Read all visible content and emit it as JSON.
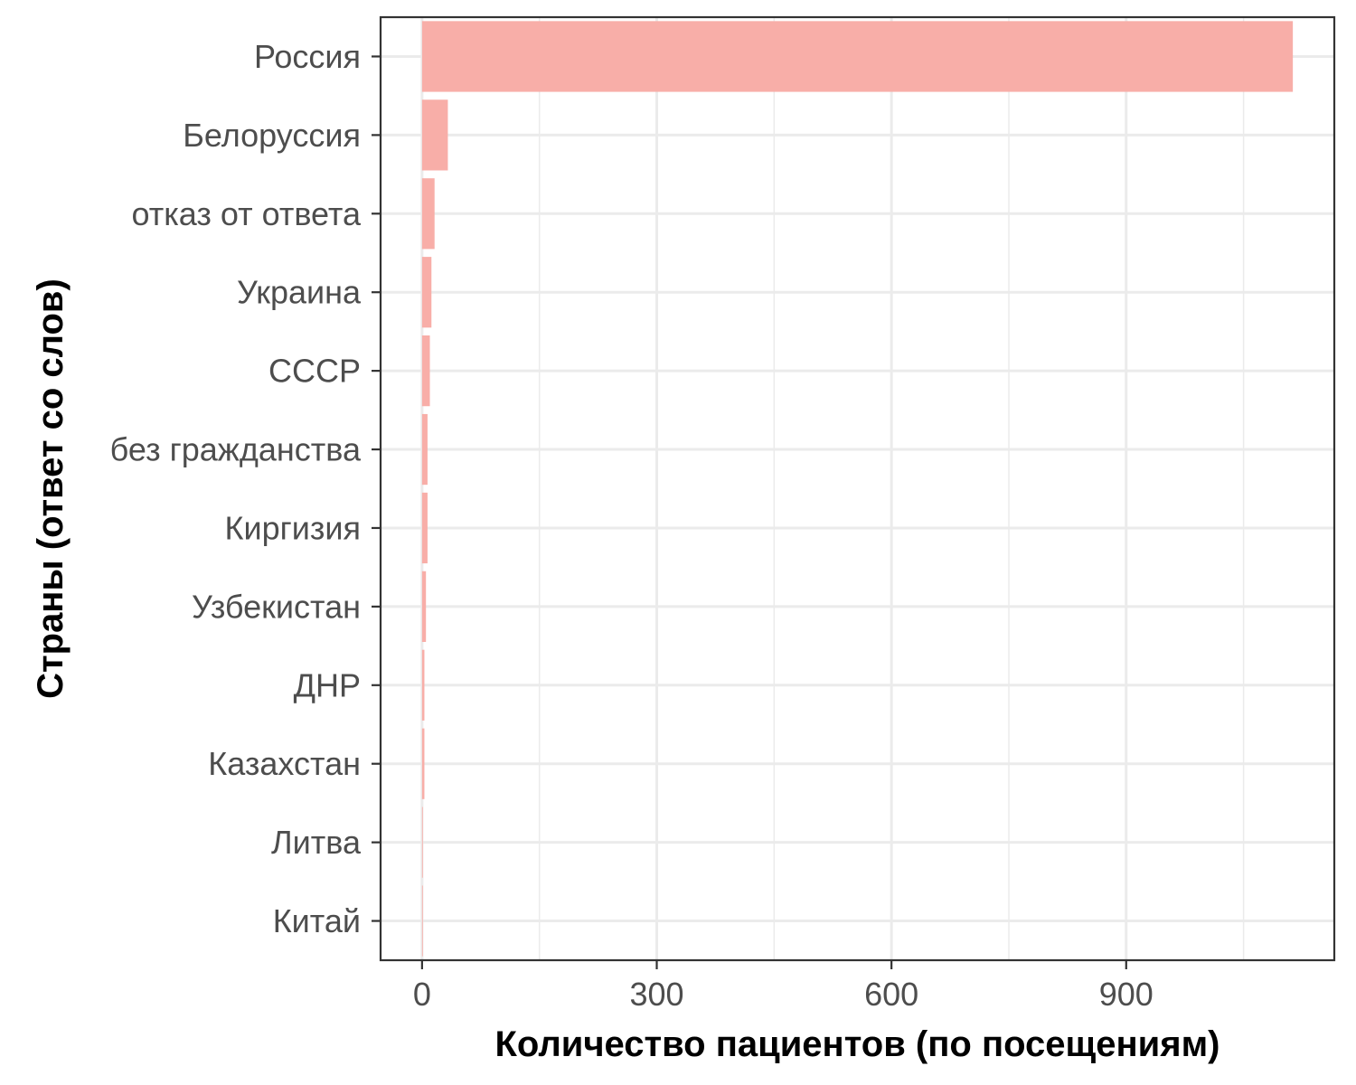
{
  "chart_data": {
    "type": "bar",
    "orientation": "horizontal",
    "xlabel": "Количество пациентов (по посещениям)",
    "ylabel": "Страны (ответ со слов)",
    "categories": [
      "Россия",
      "Белоруссия",
      "отказ от ответа",
      "Украина",
      "СССР",
      "без гражданства",
      "Киргизия",
      "Узбекистан",
      "ДНР",
      "Казахстан",
      "Литва",
      "Китай"
    ],
    "values": [
      1113,
      33,
      16,
      12,
      10,
      7,
      7,
      5,
      3,
      3,
      1,
      1
    ],
    "xlim": [
      -53,
      1166
    ],
    "xticks": [
      0,
      300,
      600,
      900
    ],
    "xtick_labels": [
      "0",
      "300",
      "600",
      "900"
    ],
    "grid": true,
    "legend": "none",
    "colors": {
      "bar": "#f8aea8",
      "grid": "#ebebeb",
      "panel_border": "#333333",
      "tick_text": "#4d4d4d",
      "title_text": "#000000"
    }
  }
}
